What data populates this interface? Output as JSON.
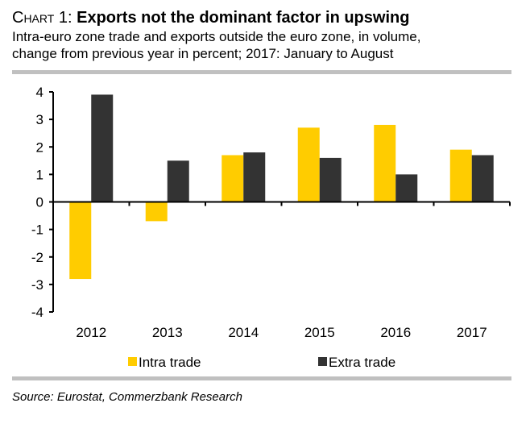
{
  "header": {
    "title_prefix": "Chart 1:",
    "title_main": "Exports not the dominant factor in upswing",
    "subtitle_line1": "Intra-euro zone trade and exports outside the euro zone, in volume,",
    "subtitle_line2": "change from previous year in percent; 2017: January to August"
  },
  "footer": {
    "source": "Source: Eurostat, Commerzbank Research"
  },
  "chart_data": {
    "type": "bar",
    "title": "Exports not the dominant factor in upswing",
    "xlabel": "",
    "ylabel": "",
    "categories": [
      "2012",
      "2013",
      "2014",
      "2015",
      "2016",
      "2017"
    ],
    "series": [
      {
        "name": "Intra trade",
        "color": "#FFCC00",
        "values": [
          -2.8,
          -0.7,
          1.7,
          2.7,
          2.8,
          1.9
        ]
      },
      {
        "name": "Extra trade",
        "color": "#333333",
        "values": [
          3.9,
          1.5,
          1.8,
          1.6,
          1.0,
          1.7
        ]
      }
    ],
    "ylim": [
      -4,
      4
    ],
    "yticks": [
      "4",
      "3",
      "2",
      "1",
      "0",
      "-1",
      "-2",
      "-3",
      "-4"
    ],
    "ytick_values": [
      4,
      3,
      2,
      1,
      0,
      -1,
      -2,
      -3,
      -4
    ],
    "grid": false,
    "legend_position": "bottom"
  }
}
